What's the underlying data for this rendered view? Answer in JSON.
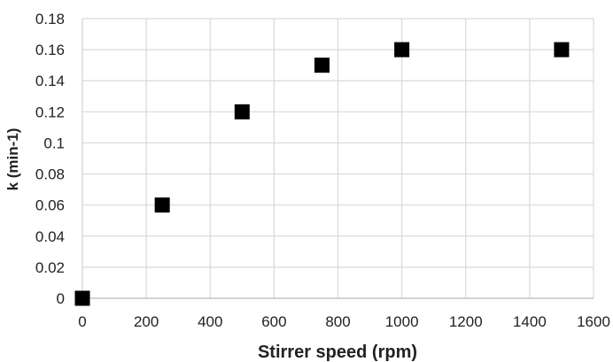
{
  "chart_data": {
    "type": "scatter",
    "xlabel": "Stirrer speed (rpm)",
    "ylabel": "k (min-1)",
    "xlim": [
      0,
      1600
    ],
    "ylim": [
      0,
      0.18
    ],
    "xticks": [
      0,
      200,
      400,
      600,
      800,
      1000,
      1200,
      1400,
      1600
    ],
    "yticks": [
      0,
      0.02,
      0.04,
      0.06,
      0.08,
      0.1,
      0.12,
      0.14,
      0.16,
      0.18
    ],
    "xtick_labels": [
      "0",
      "200",
      "400",
      "600",
      "800",
      "1000",
      "1200",
      "1400",
      "1600"
    ],
    "ytick_labels": [
      "0",
      "0.02",
      "0.04",
      "0.06",
      "0.08",
      "0.1",
      "0.12",
      "0.14",
      "0.16",
      "0.18"
    ],
    "grid": true,
    "marker": "square",
    "marker_color": "#000000",
    "gridline_color": "#d9d9d9",
    "series": [
      {
        "x": [
          0,
          250,
          500,
          750,
          1000,
          1500
        ],
        "y": [
          0,
          0.06,
          0.12,
          0.15,
          0.16,
          0.16
        ]
      }
    ]
  }
}
